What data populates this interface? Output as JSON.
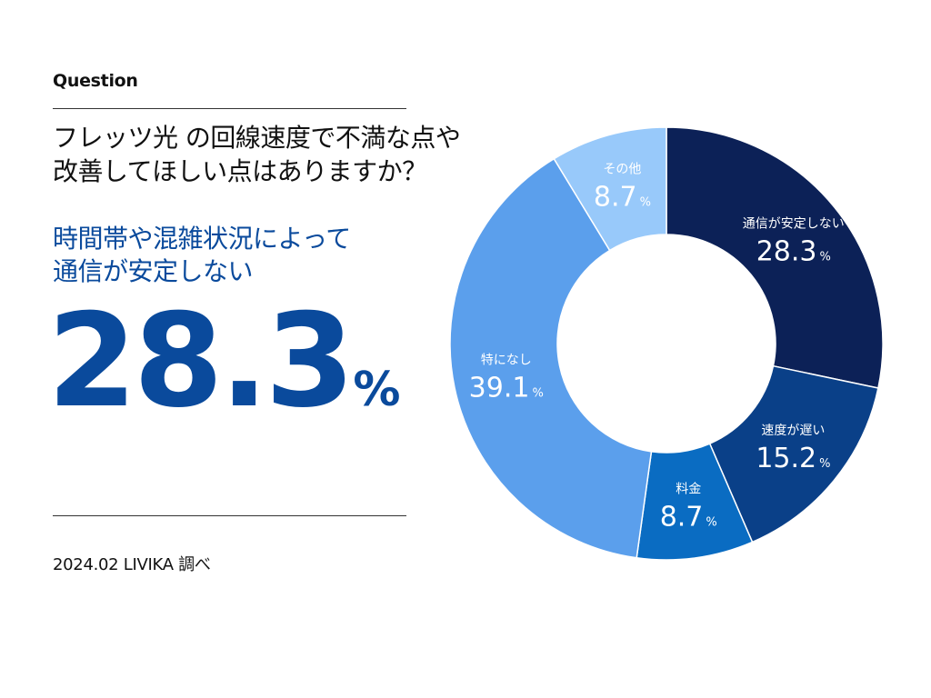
{
  "header": {
    "label": "Question",
    "question_line1": "フレッツ光 の回線速度で不満な点や",
    "question_line2": "改善してほしい点はありますか？"
  },
  "highlight": {
    "line1": "時間帯や混雑状況によって",
    "line2": "通信が安定しない",
    "value": "28.3",
    "unit": "%"
  },
  "footer": {
    "source": "2024.02 LIVIKA 調べ"
  },
  "chart_data": {
    "type": "pie",
    "donut": true,
    "slices": [
      {
        "label": "通信が安定しない",
        "value": 28.3,
        "display": "28.3",
        "color": "#0c2157"
      },
      {
        "label": "速度が遅い",
        "value": 15.2,
        "display": "15.2",
        "color": "#0a4088"
      },
      {
        "label": "料金",
        "value": 8.7,
        "display": "8.7",
        "color": "#0a6cc2"
      },
      {
        "label": "特になし",
        "value": 39.1,
        "display": "39.1",
        "color": "#5b9fec"
      },
      {
        "label": "その他",
        "value": 8.7,
        "display": "8.7",
        "color": "#98c9fa"
      }
    ],
    "unit": "%"
  }
}
